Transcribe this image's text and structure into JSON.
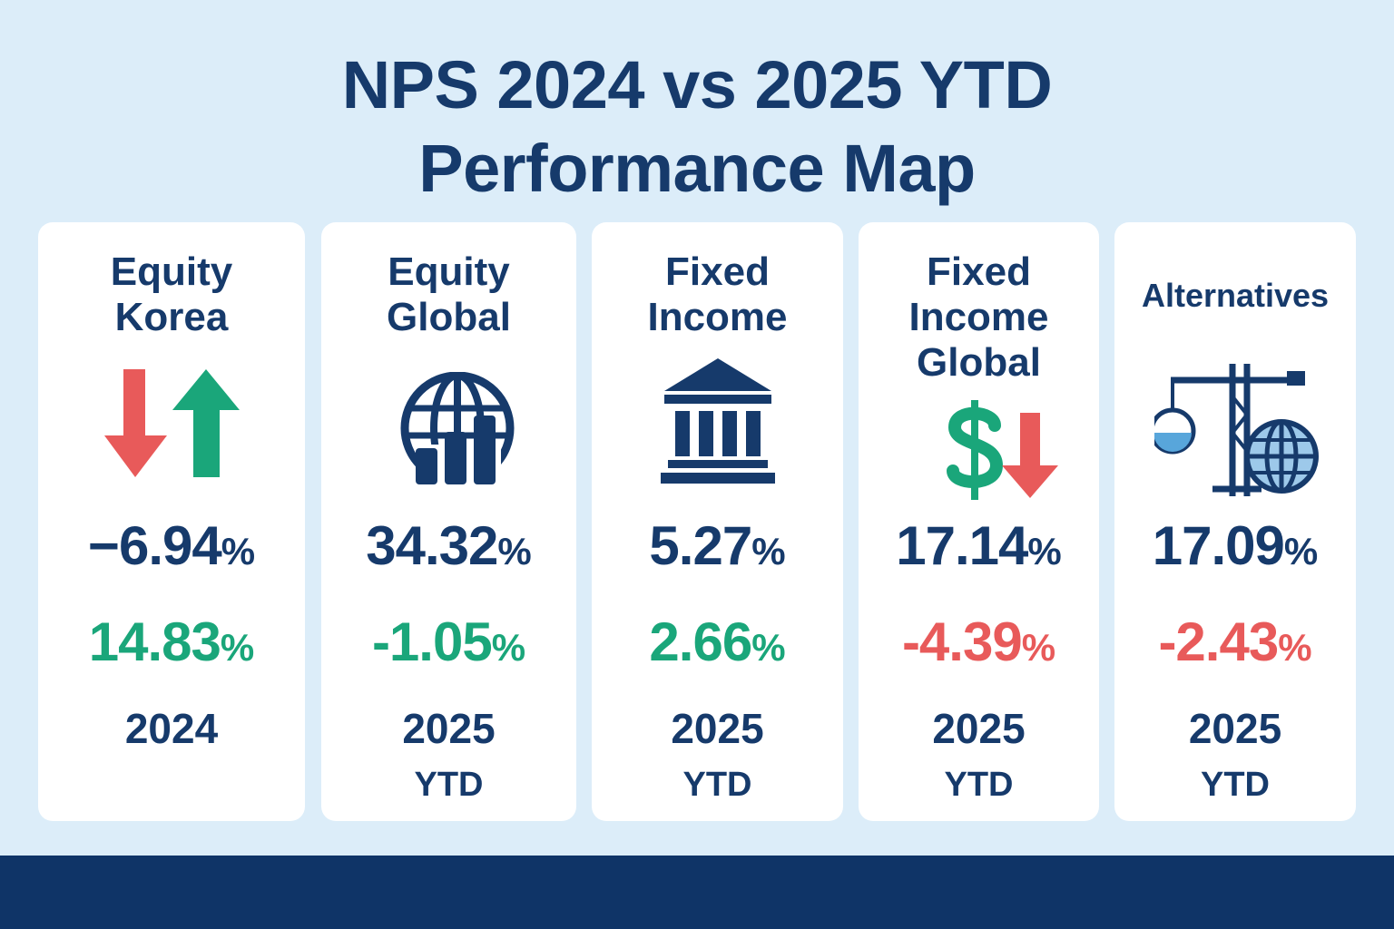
{
  "title": {
    "line1": "NPS 2024 vs 2025 YTD",
    "line2": "Performance Map"
  },
  "colors": {
    "navy": "#163a6b",
    "green": "#1aa67a",
    "red": "#e85a5a",
    "background": "#dcedf9",
    "card": "#ffffff",
    "footer": "#0f3467"
  },
  "chart_data": {
    "type": "table",
    "title": "NPS 2024 vs 2025 YTD Performance Map",
    "columns": [
      "Equity Korea",
      "Equity Global",
      "Fixed Income",
      "Fixed Income Global",
      "Alternatives"
    ],
    "cards": [
      {
        "label_lines": [
          "Equity",
          "Korea"
        ],
        "icon": "up-down-arrows-icon",
        "value1": "−6.94",
        "value1_unit": "%",
        "value2": "14.83",
        "value2_unit": "%",
        "value2_color": "#1aa67a",
        "period_year": "2024",
        "period_suffix": ""
      },
      {
        "label_lines": [
          "Equity",
          "Global"
        ],
        "icon": "globe-bar-chart-icon",
        "value1": "34.32",
        "value1_unit": "%",
        "value2": "-1.05",
        "value2_unit": "%",
        "value2_color": "#1aa67a",
        "period_year": "2025",
        "period_suffix": "YTD"
      },
      {
        "label_lines": [
          "Fixed",
          "Income"
        ],
        "icon": "bank-building-icon",
        "value1": "5.27",
        "value1_unit": "%",
        "value2": "2.66",
        "value2_unit": "%",
        "value2_color": "#1aa67a",
        "period_year": "2025",
        "period_suffix": "YTD"
      },
      {
        "label_lines": [
          "Fixed",
          "Income",
          "Global"
        ],
        "icon": "dollar-down-arrow-icon",
        "value1": "17.14",
        "value1_unit": "%",
        "value2": "-4.39",
        "value2_unit": "%",
        "value2_color": "#e85a5a",
        "period_year": "2025",
        "period_suffix": "YTD"
      },
      {
        "label_lines": [
          "Alternatives"
        ],
        "icon": "crane-globe-icon",
        "value1": "17.09",
        "value1_unit": "%",
        "value2": "-2.43",
        "value2_unit": "%",
        "value2_color": "#e85a5a",
        "period_year": "2025",
        "period_suffix": "YTD"
      }
    ]
  }
}
